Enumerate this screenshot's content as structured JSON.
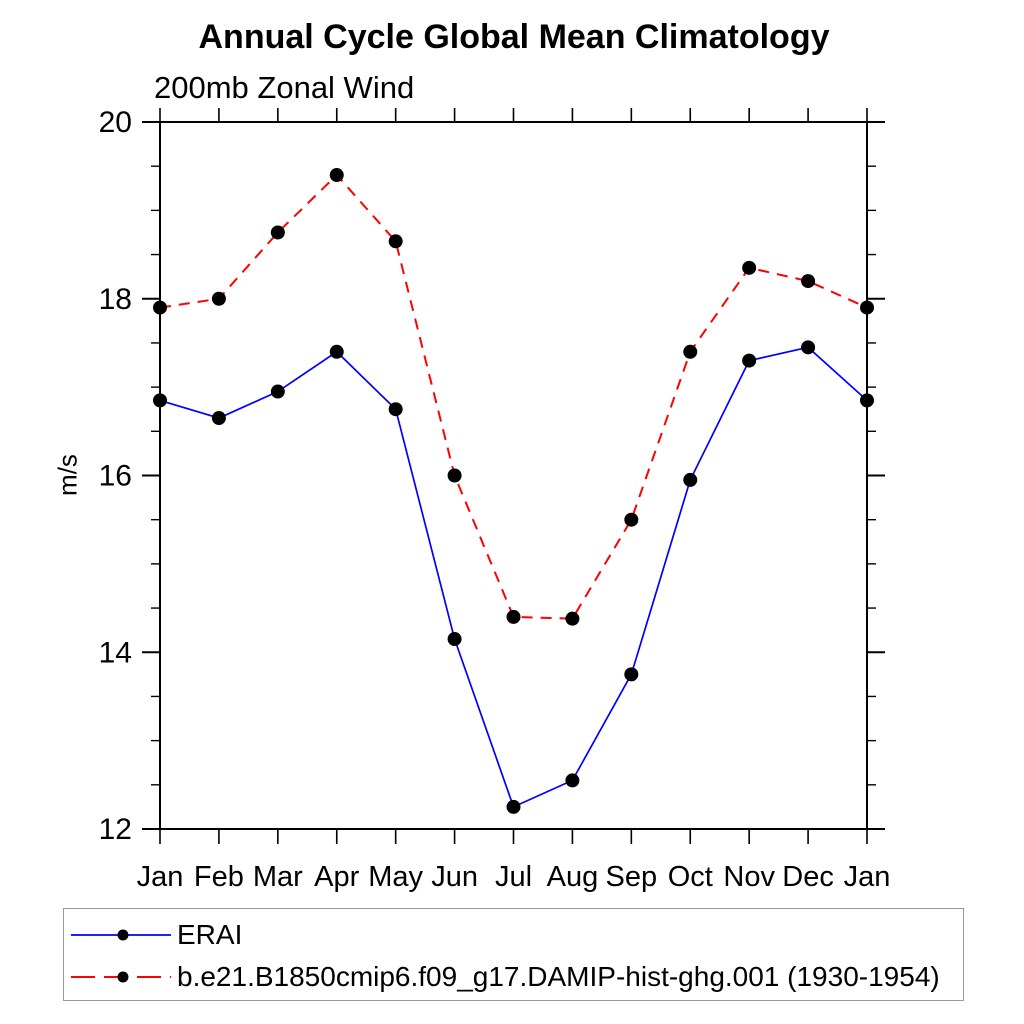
{
  "chart_data": {
    "type": "line",
    "title": "Annual Cycle Global Mean Climatology",
    "subtitle": "200mb Zonal Wind",
    "ylabel": "m/s",
    "categories": [
      "Jan",
      "Feb",
      "Mar",
      "Apr",
      "May",
      "Jun",
      "Jul",
      "Aug",
      "Sep",
      "Oct",
      "Nov",
      "Dec",
      "Jan"
    ],
    "ylim": [
      12,
      20
    ],
    "y_major_ticks": [
      12,
      14,
      16,
      18,
      20
    ],
    "y_minor_step": 0.5,
    "grid": false,
    "legend_position": "bottom-left boxed",
    "series": [
      {
        "name": "ERAI",
        "line_style": "solid",
        "color": "#0000ff",
        "marker": "filled-circle",
        "marker_color": "#000000",
        "values": [
          16.85,
          16.65,
          16.95,
          17.4,
          16.75,
          14.15,
          12.25,
          12.55,
          13.75,
          15.95,
          17.3,
          17.45,
          16.85
        ]
      },
      {
        "name": "b.e21.B1850cmip6.f09_g17.DAMIP-hist-ghg.001 (1930-1954)",
        "line_style": "dashed",
        "color": "#ff0000",
        "marker": "filled-circle",
        "marker_color": "#000000",
        "values": [
          17.9,
          18.0,
          18.75,
          19.4,
          18.65,
          16.0,
          14.4,
          14.38,
          15.5,
          17.4,
          18.35,
          18.2,
          17.9
        ]
      }
    ],
    "colors": {
      "axis": "#000000",
      "legend_border": "#999999",
      "background": "#ffffff"
    }
  }
}
